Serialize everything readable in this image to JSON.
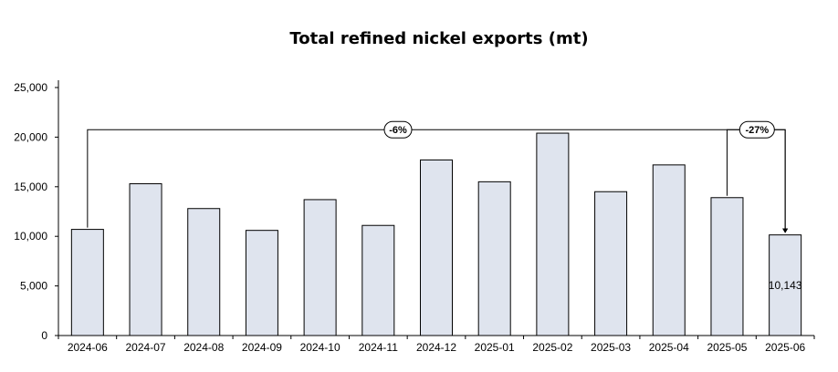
{
  "chart_data": {
    "type": "bar",
    "title": "Total refined nickel exports (mt)",
    "xlabel": "",
    "ylabel": "",
    "categories": [
      "2024-06",
      "2024-07",
      "2024-08",
      "2024-09",
      "2024-10",
      "2024-11",
      "2024-12",
      "2025-01",
      "2025-02",
      "2025-03",
      "2025-04",
      "2025-05",
      "2025-06"
    ],
    "values": [
      10700,
      15300,
      12800,
      10600,
      13700,
      11100,
      17700,
      15500,
      20400,
      14500,
      17200,
      13900,
      10143
    ],
    "ylim": [
      0,
      25000
    ],
    "yticks": [
      0,
      5000,
      10000,
      15000,
      20000,
      25000
    ],
    "ytick_labels": [
      "0",
      "5,000",
      "10,000",
      "15,000",
      "20,000",
      "25,000"
    ],
    "grid": false,
    "bar_color": "#dfe4ee",
    "data_labels": [
      {
        "category": "2025-06",
        "text": "10,143"
      }
    ],
    "annotations": [
      {
        "from": "2024-06",
        "to": "2025-06",
        "label": "-6%"
      },
      {
        "from": "2025-05",
        "to": "2025-06",
        "label": "-27%"
      }
    ]
  }
}
